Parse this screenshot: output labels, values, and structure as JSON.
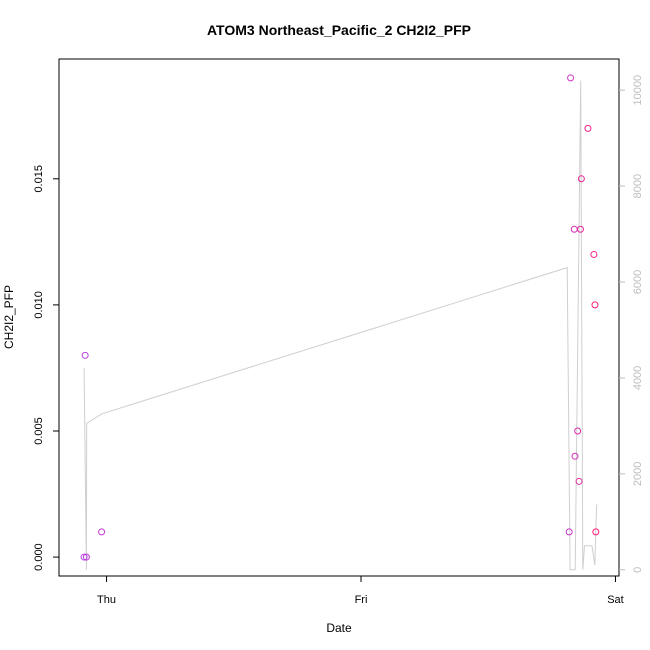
{
  "chart_data": {
    "type": "scatter",
    "title": "ATOM3 Northeast_Pacific_2 CH2I2_PFP",
    "xlabel": "Date",
    "ylabel": "CH2I2_PFP",
    "x_axis": {
      "type": "date",
      "ticks": [
        {
          "label": "Thu",
          "x": "2017-10-12T00:00"
        },
        {
          "label": "Fri",
          "x": "2017-10-13T00:00"
        },
        {
          "label": "Sat",
          "x": "2017-10-14T00:00"
        }
      ],
      "range": [
        "2017-10-11T19:31",
        "2017-10-14T00:20"
      ]
    },
    "y_axis": {
      "range": [
        -0.00075,
        0.01975
      ],
      "ticks": [
        0.0,
        0.005,
        0.01,
        0.015
      ],
      "tick_labels": [
        "0.000",
        "0.005",
        "0.010",
        "0.015"
      ]
    },
    "y2_axis": {
      "range": [
        -130,
        10650
      ],
      "ticks": [
        0,
        2000,
        4000,
        6000,
        8000,
        10000
      ],
      "tick_labels": [
        "0",
        "2000",
        "4000",
        "6000",
        "8000",
        "10000"
      ],
      "color": "#bdbdbd"
    },
    "series": [
      {
        "kind": "points",
        "color_start": "#b43fe6",
        "color_end": "#ff1a75",
        "x": [
          "2017-10-11T21:53",
          "2017-10-11T21:59",
          "2017-10-11T22:06",
          "2017-10-11T23:32",
          "2017-10-13T19:38",
          "2017-10-13T19:46",
          "2017-10-13T20:07",
          "2017-10-13T20:11",
          "2017-10-13T20:26",
          "2017-10-13T20:34",
          "2017-10-13T20:42",
          "2017-10-13T20:47",
          "2017-10-13T21:24",
          "2017-10-13T21:58",
          "2017-10-13T22:04",
          "2017-10-13T22:09"
        ],
        "values": [
          0.0,
          0.008,
          0.0,
          0.001,
          0.001,
          0.019,
          0.013,
          0.004,
          0.005,
          0.003,
          0.013,
          0.015,
          0.017,
          0.012,
          0.01,
          0.001
        ]
      },
      {
        "kind": "line",
        "axis": "y2",
        "color": "#cfcfcf",
        "x": [
          "2017-10-11T21:53",
          "2017-10-11T22:06",
          "2017-10-11T22:08",
          "2017-10-11T23:32",
          "2017-10-13T19:27",
          "2017-10-13T19:43",
          "2017-10-13T20:12",
          "2017-10-13T20:43",
          "2017-10-13T20:55",
          "2017-10-13T21:05",
          "2017-10-13T21:47",
          "2017-10-13T22:03",
          "2017-10-13T22:13",
          "2017-10-13T22:18"
        ],
        "values": [
          4200,
          0,
          3050,
          3250,
          6300,
          0,
          0,
          10200,
          0,
          500,
          500,
          100,
          1350,
          1350
        ]
      }
    ],
    "grid": false,
    "legend": "none"
  }
}
